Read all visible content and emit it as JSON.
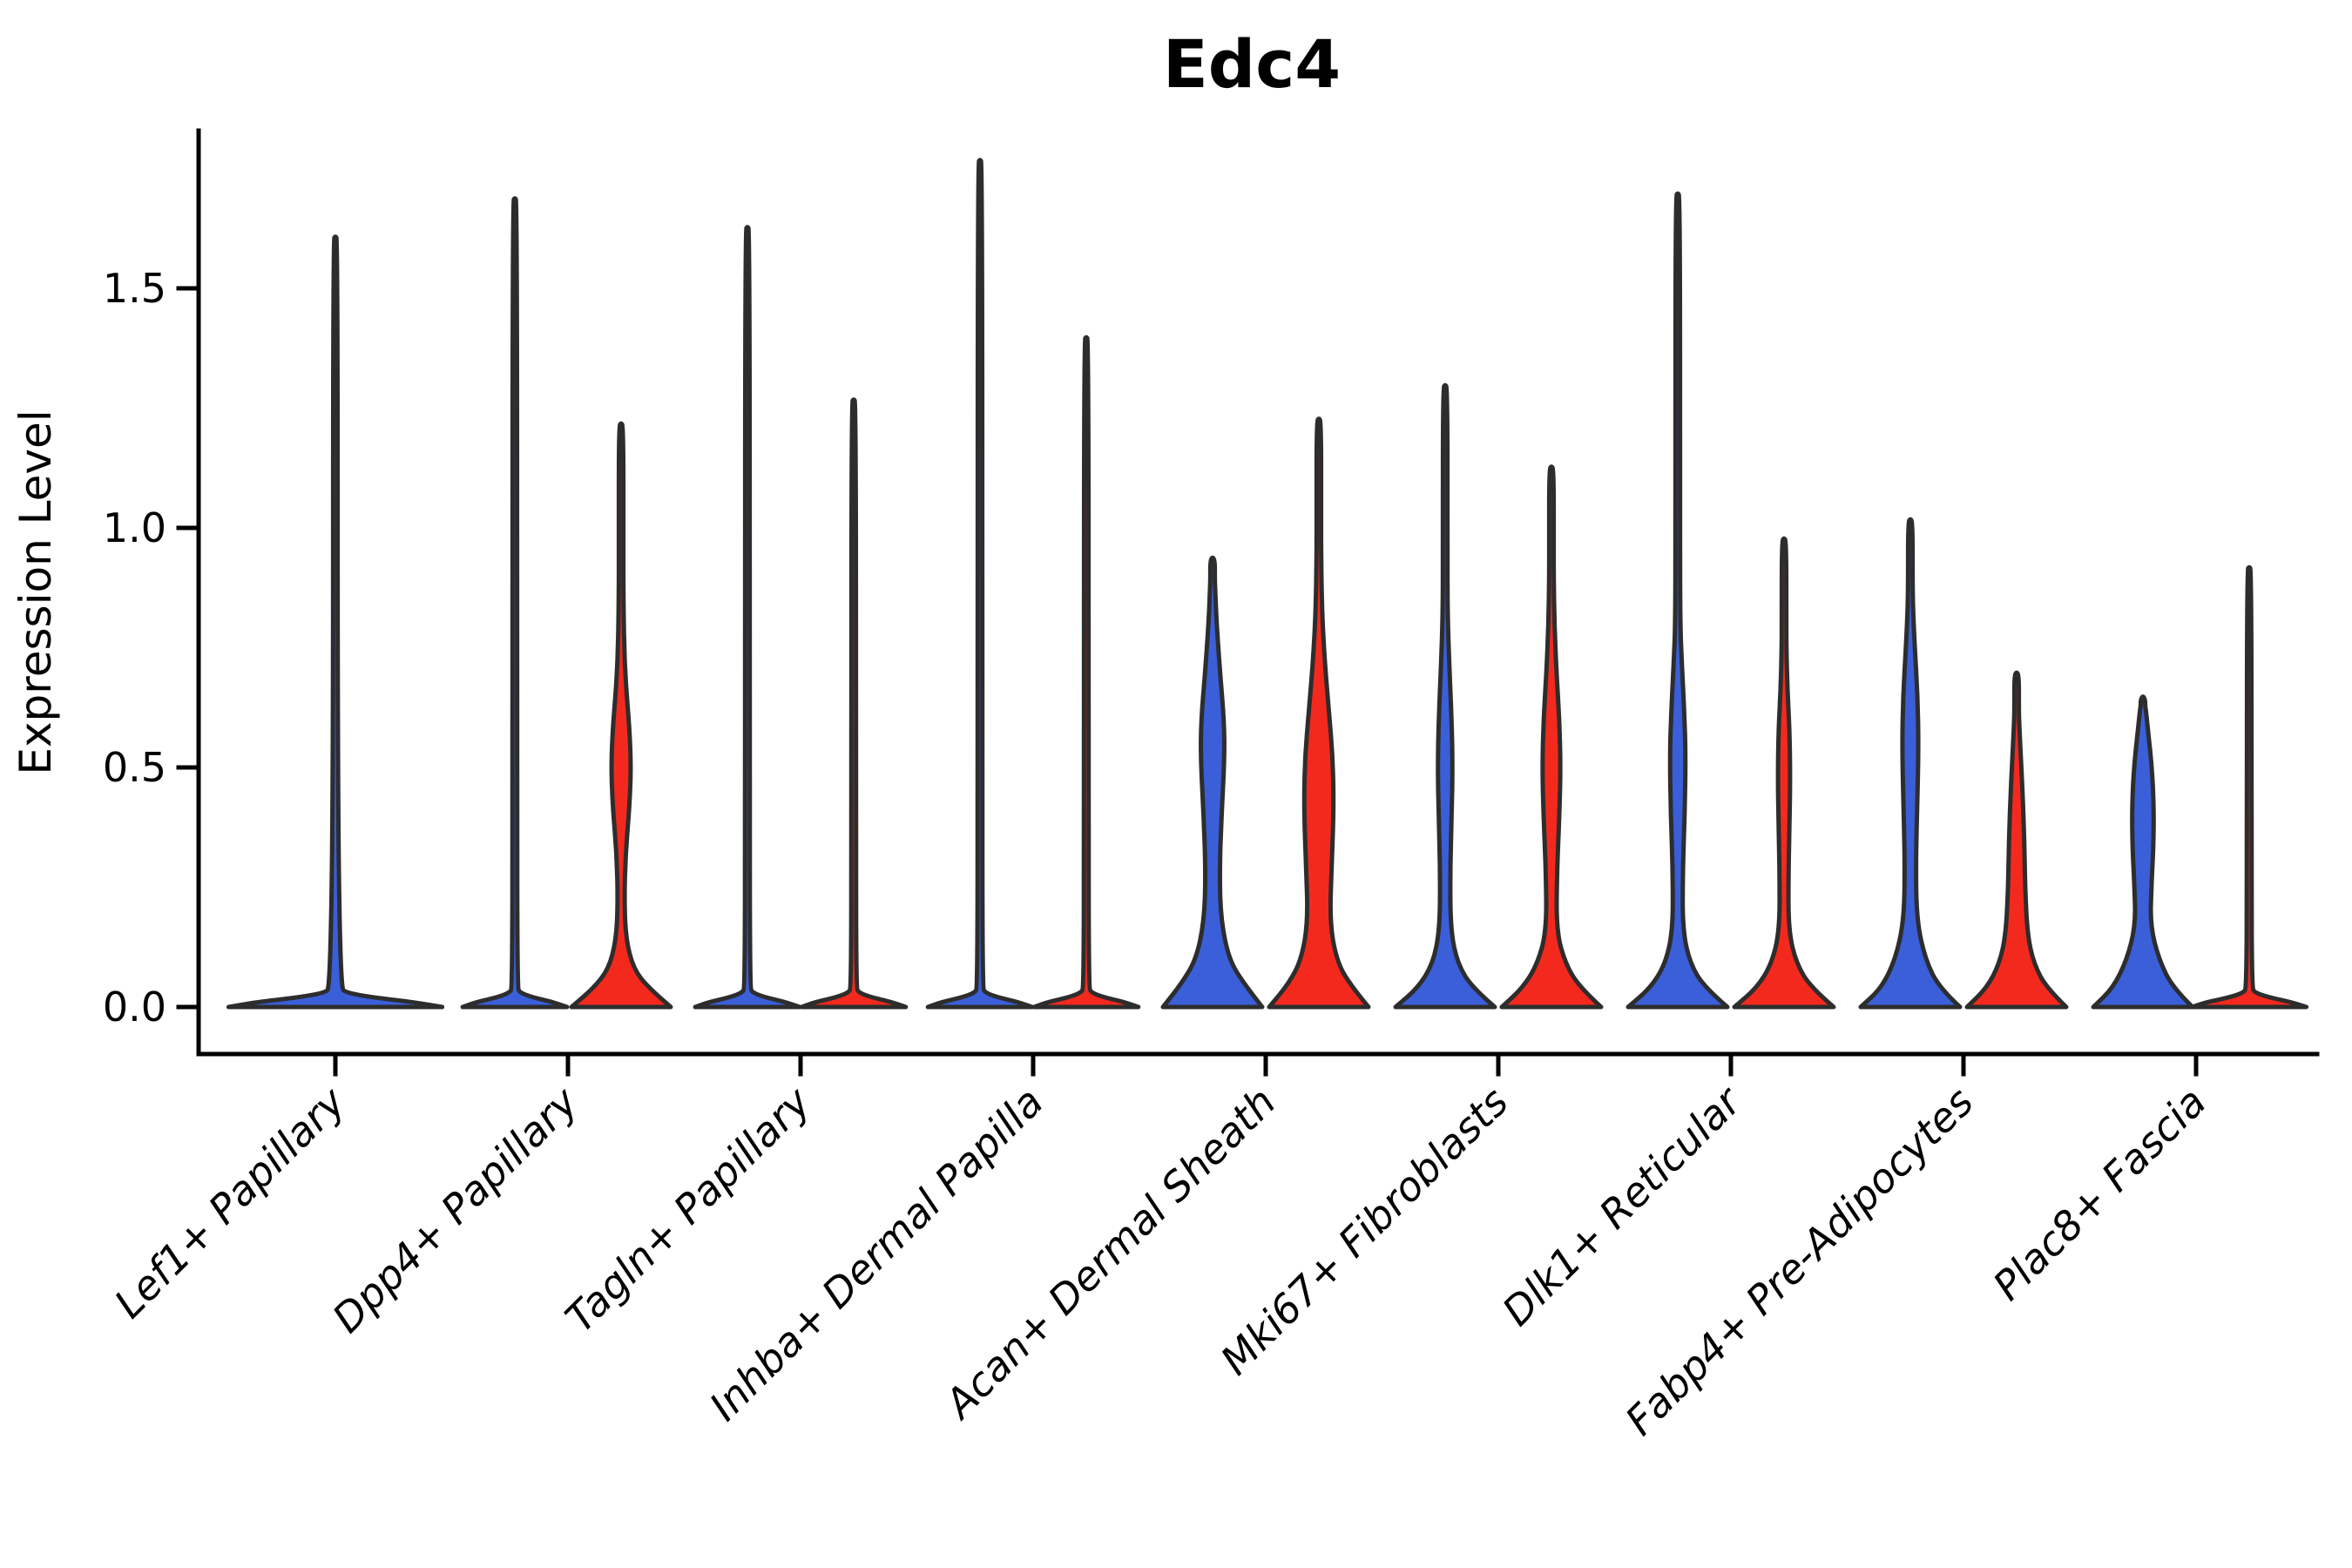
{
  "title": "Edc4",
  "y_axis": {
    "label": "Expression Level",
    "ticks": [
      "0.0",
      "0.5",
      "1.0",
      "1.5"
    ],
    "tick_values": [
      0.0,
      0.5,
      1.0,
      1.5
    ]
  },
  "colors": {
    "blue": "#3A5FD9",
    "red": "#F4291D",
    "outline": "#2D2D2D",
    "axis": "#000000",
    "background": "#FFFFFF"
  },
  "chart_data": {
    "type": "violin",
    "title": "Edc4",
    "xlabel": "",
    "ylabel": "Expression Level",
    "ylim": [
      -0.05,
      1.87
    ],
    "yticks": [
      0.0,
      0.5,
      1.0,
      1.5
    ],
    "grid": false,
    "legend": "none",
    "categories": [
      "Lef1+ Papillary",
      "Dpp4+ Papillary",
      "Tagln+ Papillary",
      "Inhba+ Dermal Papilla",
      "Acan+ Dermal Sheath",
      "Mki67+ Fibroblasts",
      "Dlk1+ Reticular",
      "Fabp4+ Pre-Adipocytes",
      "Plac8+ Fascia"
    ],
    "series_note": "split violin pairs: left=blue series, right=red series; flat violins are near-all-zero distributions with a thin spike to the max expression value",
    "violins": [
      {
        "category_index": 0,
        "category": "Lef1+ Papillary",
        "side": "center",
        "color": "blue",
        "flat": true,
        "width_mult": 2.15,
        "max": 1.61,
        "profile": [
          [
            0,
            1.0
          ],
          [
            0.01,
            0.75
          ],
          [
            0.02,
            0.35
          ],
          [
            0.03,
            0.1
          ],
          [
            0.04,
            0.05
          ]
        ]
      },
      {
        "category_index": 1,
        "category": "Dpp4+ Papillary",
        "side": "left",
        "color": "blue",
        "flat": true,
        "width_mult": 1.05,
        "max": 1.69,
        "profile": [
          [
            0,
            1.0
          ],
          [
            0.01,
            0.75
          ],
          [
            0.02,
            0.35
          ],
          [
            0.03,
            0.1
          ],
          [
            0.04,
            0.05
          ]
        ]
      },
      {
        "category_index": 1,
        "category": "Dpp4+ Papillary",
        "side": "right",
        "color": "red",
        "flat": false,
        "width_mult": 1,
        "max": 1.22,
        "profile": [
          [
            0,
            1.0
          ],
          [
            0.04,
            0.55
          ],
          [
            0.08,
            0.25
          ],
          [
            0.14,
            0.1
          ],
          [
            0.22,
            0.065
          ],
          [
            0.32,
            0.09
          ],
          [
            0.42,
            0.17
          ],
          [
            0.5,
            0.2
          ],
          [
            0.58,
            0.17
          ],
          [
            0.68,
            0.09
          ],
          [
            0.78,
            0.055
          ],
          [
            0.88,
            0.045
          ]
        ]
      },
      {
        "category_index": 2,
        "category": "Tagln+ Papillary",
        "side": "left",
        "color": "blue",
        "flat": true,
        "width_mult": 1.05,
        "max": 1.63,
        "profile": [
          [
            0,
            1.0
          ],
          [
            0.01,
            0.75
          ],
          [
            0.02,
            0.35
          ],
          [
            0.03,
            0.1
          ],
          [
            0.04,
            0.05
          ]
        ]
      },
      {
        "category_index": 2,
        "category": "Tagln+ Papillary",
        "side": "right",
        "color": "red",
        "flat": true,
        "width_mult": 1.05,
        "max": 1.27,
        "profile": [
          [
            0,
            1.0
          ],
          [
            0.01,
            0.75
          ],
          [
            0.02,
            0.35
          ],
          [
            0.03,
            0.1
          ],
          [
            0.04,
            0.05
          ]
        ]
      },
      {
        "category_index": 3,
        "category": "Inhba+ Dermal Papilla",
        "side": "left",
        "color": "blue",
        "flat": true,
        "width_mult": 1.05,
        "max": 1.77,
        "profile": [
          [
            0,
            1.0
          ],
          [
            0.01,
            0.75
          ],
          [
            0.02,
            0.35
          ],
          [
            0.03,
            0.1
          ],
          [
            0.04,
            0.05
          ]
        ]
      },
      {
        "category_index": 3,
        "category": "Inhba+ Dermal Papilla",
        "side": "right",
        "color": "red",
        "flat": true,
        "width_mult": 1.05,
        "max": 1.4,
        "profile": [
          [
            0,
            1.0
          ],
          [
            0.01,
            0.75
          ],
          [
            0.02,
            0.35
          ],
          [
            0.03,
            0.1
          ],
          [
            0.04,
            0.05
          ]
        ]
      },
      {
        "category_index": 4,
        "category": "Acan+ Dermal Sheath",
        "side": "left",
        "color": "blue",
        "flat": false,
        "width_mult": 1,
        "max": 0.94,
        "profile": [
          [
            0,
            1.0
          ],
          [
            0.05,
            0.62
          ],
          [
            0.1,
            0.33
          ],
          [
            0.18,
            0.17
          ],
          [
            0.28,
            0.14
          ],
          [
            0.4,
            0.18
          ],
          [
            0.52,
            0.24
          ],
          [
            0.6,
            0.23
          ],
          [
            0.7,
            0.15
          ],
          [
            0.8,
            0.08
          ],
          [
            0.88,
            0.05
          ]
        ]
      },
      {
        "category_index": 4,
        "category": "Acan+ Dermal Sheath",
        "side": "right",
        "color": "red",
        "flat": false,
        "width_mult": 1,
        "max": 1.23,
        "profile": [
          [
            0,
            1.0
          ],
          [
            0.05,
            0.6
          ],
          [
            0.1,
            0.35
          ],
          [
            0.18,
            0.22
          ],
          [
            0.3,
            0.26
          ],
          [
            0.42,
            0.3
          ],
          [
            0.52,
            0.28
          ],
          [
            0.62,
            0.2
          ],
          [
            0.72,
            0.12
          ],
          [
            0.82,
            0.065
          ],
          [
            0.95,
            0.045
          ]
        ]
      },
      {
        "category_index": 5,
        "category": "Mki67+ Fibroblasts",
        "side": "left",
        "color": "blue",
        "flat": false,
        "width_mult": 1,
        "max": 1.3,
        "profile": [
          [
            0,
            1.0
          ],
          [
            0.04,
            0.55
          ],
          [
            0.09,
            0.25
          ],
          [
            0.16,
            0.11
          ],
          [
            0.28,
            0.1
          ],
          [
            0.4,
            0.13
          ],
          [
            0.5,
            0.15
          ],
          [
            0.6,
            0.13
          ],
          [
            0.72,
            0.08
          ],
          [
            0.82,
            0.05
          ]
        ]
      },
      {
        "category_index": 5,
        "category": "Mki67+ Fibroblasts",
        "side": "right",
        "color": "red",
        "flat": false,
        "width_mult": 1,
        "max": 1.13,
        "profile": [
          [
            0,
            1.0
          ],
          [
            0.04,
            0.58
          ],
          [
            0.09,
            0.28
          ],
          [
            0.16,
            0.1
          ],
          [
            0.28,
            0.11
          ],
          [
            0.4,
            0.16
          ],
          [
            0.5,
            0.185
          ],
          [
            0.6,
            0.16
          ],
          [
            0.7,
            0.1
          ],
          [
            0.8,
            0.06
          ],
          [
            0.9,
            0.045
          ]
        ]
      },
      {
        "category_index": 6,
        "category": "Dlk1+ Reticular",
        "side": "left",
        "color": "blue",
        "flat": false,
        "width_mult": 1,
        "max": 1.7,
        "profile": [
          [
            0,
            1.0
          ],
          [
            0.04,
            0.55
          ],
          [
            0.09,
            0.25
          ],
          [
            0.16,
            0.1
          ],
          [
            0.28,
            0.1
          ],
          [
            0.4,
            0.14
          ],
          [
            0.52,
            0.16
          ],
          [
            0.62,
            0.13
          ],
          [
            0.72,
            0.08
          ],
          [
            0.8,
            0.05
          ]
        ]
      },
      {
        "category_index": 6,
        "category": "Dlk1+ Reticular",
        "side": "right",
        "color": "red",
        "flat": false,
        "width_mult": 1,
        "max": 0.98,
        "profile": [
          [
            0,
            1.0
          ],
          [
            0.04,
            0.55
          ],
          [
            0.09,
            0.25
          ],
          [
            0.16,
            0.09
          ],
          [
            0.28,
            0.09
          ],
          [
            0.38,
            0.11
          ],
          [
            0.48,
            0.125
          ],
          [
            0.58,
            0.11
          ],
          [
            0.66,
            0.07
          ],
          [
            0.74,
            0.05
          ]
        ]
      },
      {
        "category_index": 7,
        "category": "Fabp4+ Pre-Adipocytes",
        "side": "left",
        "color": "blue",
        "flat": false,
        "width_mult": 1,
        "max": 1.02,
        "profile": [
          [
            0,
            1.0
          ],
          [
            0.04,
            0.58
          ],
          [
            0.1,
            0.3
          ],
          [
            0.18,
            0.13
          ],
          [
            0.3,
            0.11
          ],
          [
            0.42,
            0.14
          ],
          [
            0.55,
            0.165
          ],
          [
            0.65,
            0.145
          ],
          [
            0.75,
            0.09
          ],
          [
            0.83,
            0.055
          ]
        ]
      },
      {
        "category_index": 7,
        "category": "Fabp4+ Pre-Adipocytes",
        "side": "right",
        "color": "red",
        "flat": false,
        "width_mult": 1,
        "max": 0.7,
        "profile": [
          [
            0,
            1.0
          ],
          [
            0.04,
            0.6
          ],
          [
            0.09,
            0.35
          ],
          [
            0.15,
            0.22
          ],
          [
            0.25,
            0.17
          ],
          [
            0.35,
            0.155
          ],
          [
            0.45,
            0.12
          ],
          [
            0.53,
            0.08
          ],
          [
            0.6,
            0.05
          ]
        ]
      },
      {
        "category_index": 8,
        "category": "Plac8+ Fascia",
        "side": "left",
        "color": "blue",
        "flat": false,
        "width_mult": 1,
        "max": 0.65,
        "profile": [
          [
            0,
            1.0
          ],
          [
            0.04,
            0.6
          ],
          [
            0.1,
            0.32
          ],
          [
            0.17,
            0.15
          ],
          [
            0.25,
            0.17
          ],
          [
            0.33,
            0.21
          ],
          [
            0.42,
            0.22
          ],
          [
            0.5,
            0.18
          ],
          [
            0.57,
            0.11
          ],
          [
            0.62,
            0.06
          ]
        ]
      },
      {
        "category_index": 8,
        "category": "Plac8+ Fascia",
        "side": "right",
        "color": "red",
        "flat": true,
        "width_mult": 1.15,
        "max": 0.92,
        "profile": [
          [
            0,
            1.0
          ],
          [
            0.01,
            0.75
          ],
          [
            0.02,
            0.35
          ],
          [
            0.03,
            0.1
          ],
          [
            0.04,
            0.05
          ]
        ]
      }
    ]
  }
}
